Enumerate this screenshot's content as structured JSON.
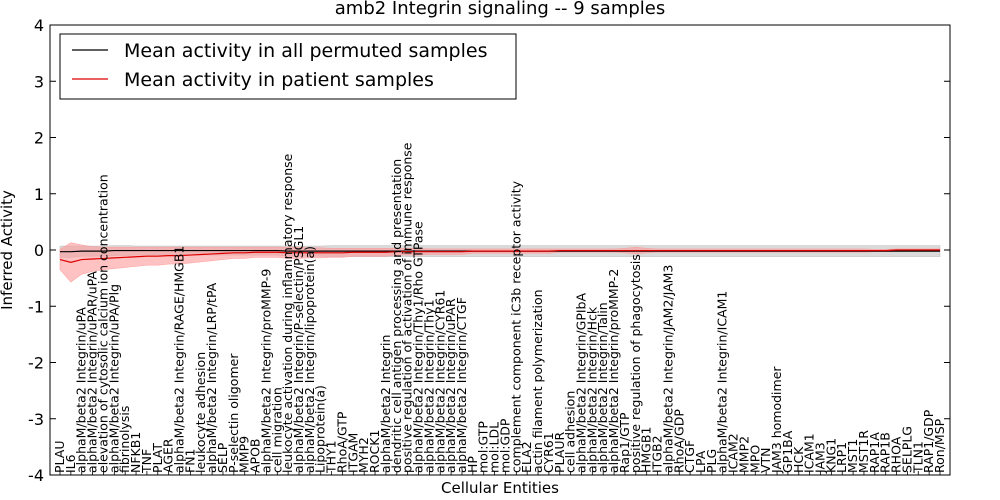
{
  "chart_data": {
    "type": "line",
    "title": "amb2 Integrin signaling -- 9 samples",
    "xlabel": "Cellular Entities",
    "ylabel": "Inferred Activity",
    "ylim": [
      -4,
      4
    ],
    "yticks": [
      -4,
      -3,
      -2,
      -1,
      0,
      1,
      2,
      3,
      4
    ],
    "grid": false,
    "legend_position": "top-left",
    "categories": [
      "PLAU",
      "IL6",
      "alphaM/beta2 Integrin/uPA",
      "alphaM/beta2 Integrin/uPAR/uPA",
      "elevation of cytosolic calcium ion concentration",
      "alphaM/beta2 Integrin/uPA/Plg",
      "fibrinolysis",
      "NFKB1",
      "TNF",
      "PLAT",
      "AGER",
      "alphaM/beta2 Integrin/RAGE/HMGB1",
      "FN1",
      "leukocyte adhesion",
      "alphaM/beta2 Integrin/LRP/tPA",
      "SELP",
      "P-selectin oligomer",
      "MMP9",
      "APOB",
      "alphaM/beta2 Integrin/proMMP-9",
      "cell migration",
      "leukocyte activation during inflammatory response",
      "alphaM/beta2 Integrin/P-selectin/PSGL1",
      "alphaM/beta2 Integrin/lipoprotein(a)",
      "Lipoprotein(a)",
      "THY1",
      "RhoA/GTP",
      "ITGAM",
      "MYH2",
      "ROCK1",
      "alphaM/beta2 Integrin",
      "dendritic cell antigen processing and presentation",
      "positive regulation of activation of immune response",
      "alphaM/beta2 Integrin/Thy1/Rho GTPase",
      "alphaM/beta2 Integrin/Thy1",
      "alphaM/beta2 Integrin/CYR61",
      "alphaM/beta2 Integrin/uPAR",
      "alphaM/beta2 Integrin/CTGF",
      "HP",
      "mol:GTP",
      "mol:LDL",
      "mol:GDP",
      "complement component iC3b receptor activity",
      "ELA2",
      "actin filament polymerization",
      "CYR61",
      "PLAUR",
      "cell adhesion",
      "alphaM/beta2 Integrin/GPIbA",
      "alphaM/beta2 Integrin/Hck",
      "alphaM/beta2 Integrin/Talin",
      "alphaM/beta2 Integrin/proMMP-2",
      "Rap1/GTP",
      "positive regulation of phagocytosis",
      "HMGB1",
      "ITGB2",
      "alphaM/beta2 Integrin/JAM2/JAM3",
      "RhoA/GDP",
      "CTGF",
      "LPA",
      "PLG",
      "alphaM/beta2 Integrin/ICAM1",
      "ICAM2",
      "MMP2",
      "MPO",
      "VTN",
      "JAM3 homodimer",
      "GP1BA",
      "HCK",
      "ICAM1",
      "JAM3",
      "KNG1",
      "LRP1",
      "MST1",
      "MST1R",
      "RAP1A",
      "RAP1B",
      "RHOA",
      "SELPLG",
      "TLN1",
      "RAP1/GDP",
      "Ron/MSP"
    ],
    "series": [
      {
        "name": "Mean activity in all permuted samples",
        "color": "#000000",
        "band_color": "#bbbbbb",
        "values": [
          -0.03,
          -0.03,
          -0.02,
          -0.02,
          -0.02,
          -0.01,
          -0.01,
          -0.01,
          -0.01,
          -0.01,
          -0.01,
          -0.01,
          -0.01,
          -0.01,
          -0.01,
          -0.01,
          -0.01,
          -0.01,
          -0.01,
          -0.01,
          -0.01,
          -0.02,
          -0.02,
          -0.02,
          -0.02,
          -0.02,
          -0.02,
          -0.02,
          -0.02,
          -0.02,
          -0.02,
          -0.02,
          -0.02,
          -0.02,
          -0.02,
          -0.02,
          -0.02,
          -0.02,
          -0.02,
          -0.02,
          -0.02,
          -0.02,
          -0.02,
          -0.02,
          -0.02,
          -0.02,
          -0.02,
          -0.02,
          -0.02,
          -0.02,
          -0.02,
          -0.02,
          -0.02,
          -0.02,
          -0.02,
          -0.02,
          -0.02,
          -0.02,
          -0.02,
          -0.02,
          -0.02,
          -0.02,
          -0.02,
          -0.02,
          -0.02,
          -0.02,
          -0.02,
          -0.02,
          -0.02,
          -0.02,
          -0.02,
          -0.02,
          -0.02,
          -0.02,
          -0.02,
          -0.02,
          -0.02,
          -0.02,
          -0.02,
          -0.02,
          -0.02,
          -0.02
        ],
        "band_half_width": [
          0.1,
          0.1,
          0.09,
          0.09,
          0.09,
          0.09,
          0.09,
          0.08,
          0.08,
          0.08,
          0.08,
          0.08,
          0.08,
          0.08,
          0.08,
          0.08,
          0.08,
          0.08,
          0.08,
          0.08,
          0.08,
          0.09,
          0.09,
          0.09,
          0.09,
          0.1,
          0.1,
          0.1,
          0.1,
          0.1,
          0.1,
          0.1,
          0.1,
          0.1,
          0.1,
          0.1,
          0.1,
          0.1,
          0.1,
          0.1,
          0.1,
          0.1,
          0.1,
          0.1,
          0.1,
          0.1,
          0.1,
          0.1,
          0.1,
          0.1,
          0.1,
          0.1,
          0.1,
          0.1,
          0.1,
          0.1,
          0.1,
          0.1,
          0.1,
          0.1,
          0.1,
          0.1,
          0.1,
          0.1,
          0.1,
          0.1,
          0.1,
          0.1,
          0.1,
          0.1,
          0.1,
          0.1,
          0.1,
          0.1,
          0.1,
          0.1,
          0.1,
          0.1,
          0.1,
          0.1,
          0.1,
          0.1
        ]
      },
      {
        "name": "Mean activity in patient samples",
        "color": "#dd0000",
        "band_color": "#ff9999",
        "values": [
          -0.17,
          -0.22,
          -0.17,
          -0.16,
          -0.15,
          -0.14,
          -0.13,
          -0.12,
          -0.11,
          -0.11,
          -0.1,
          -0.1,
          -0.09,
          -0.08,
          -0.07,
          -0.06,
          -0.05,
          -0.05,
          -0.04,
          -0.04,
          -0.04,
          -0.05,
          -0.05,
          -0.05,
          -0.05,
          -0.05,
          -0.05,
          -0.04,
          -0.04,
          -0.04,
          -0.04,
          -0.03,
          -0.03,
          -0.03,
          -0.03,
          -0.03,
          -0.03,
          -0.03,
          -0.02,
          -0.02,
          -0.02,
          -0.02,
          -0.02,
          -0.02,
          -0.02,
          -0.02,
          -0.01,
          -0.01,
          -0.01,
          -0.01,
          -0.01,
          -0.01,
          -0.01,
          -0.01,
          -0.01,
          -0.01,
          -0.01,
          -0.01,
          -0.01,
          -0.01,
          -0.01,
          -0.01,
          -0.01,
          -0.01,
          -0.01,
          -0.01,
          -0.01,
          -0.01,
          -0.01,
          -0.01,
          -0.01,
          -0.01,
          -0.01,
          -0.01,
          -0.01,
          -0.01,
          -0.01,
          0.0,
          0.0,
          0.0,
          0.0,
          0.0
        ],
        "band_half_width": [
          0.18,
          0.35,
          0.26,
          0.22,
          0.2,
          0.19,
          0.18,
          0.17,
          0.16,
          0.16,
          0.15,
          0.15,
          0.14,
          0.13,
          0.12,
          0.11,
          0.1,
          0.1,
          0.09,
          0.09,
          0.09,
          0.1,
          0.1,
          0.09,
          0.09,
          0.08,
          0.08,
          0.07,
          0.07,
          0.07,
          0.07,
          0.06,
          0.06,
          0.06,
          0.05,
          0.05,
          0.05,
          0.05,
          0.04,
          0.04,
          0.04,
          0.04,
          0.04,
          0.04,
          0.04,
          0.04,
          0.03,
          0.03,
          0.03,
          0.03,
          0.03,
          0.03,
          0.04,
          0.06,
          0.04,
          0.03,
          0.03,
          0.03,
          0.03,
          0.03,
          0.03,
          0.03,
          0.03,
          0.03,
          0.03,
          0.03,
          0.03,
          0.03,
          0.03,
          0.03,
          0.03,
          0.03,
          0.03,
          0.03,
          0.03,
          0.02,
          0.02,
          0.02,
          0.02,
          0.02,
          0.02,
          0.02
        ]
      }
    ]
  }
}
